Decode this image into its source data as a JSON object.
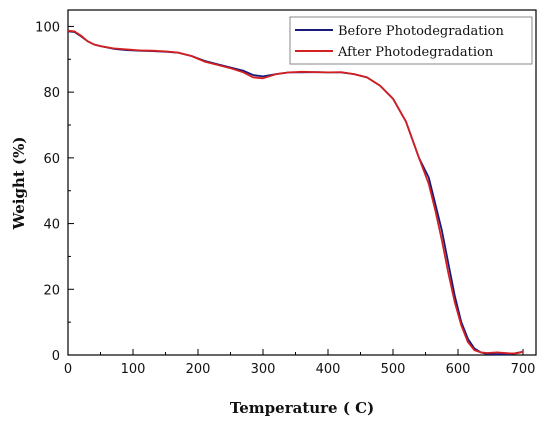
{
  "chart_data": {
    "type": "line",
    "xlabel": "Temperature ( C)",
    "ylabel": "Weight (%)",
    "xlim": [
      0,
      720
    ],
    "ylim": [
      0,
      105
    ],
    "xticks": [
      0,
      100,
      200,
      300,
      400,
      500,
      600,
      700
    ],
    "yticks": [
      0,
      20,
      40,
      60,
      80,
      100
    ],
    "grid": false,
    "legend_position": "top-right",
    "series": [
      {
        "name": "Before Photodegradation",
        "color": "#1a1a7a",
        "x": [
          0,
          10,
          20,
          30,
          40,
          50,
          70,
          90,
          110,
          130,
          150,
          170,
          190,
          210,
          230,
          250,
          270,
          285,
          300,
          320,
          340,
          360,
          380,
          400,
          420,
          440,
          460,
          480,
          500,
          520,
          540,
          555,
          565,
          575,
          585,
          595,
          605,
          615,
          625,
          635,
          645,
          660,
          680,
          700
        ],
        "y": [
          98.5,
          98.3,
          97,
          95.5,
          94.5,
          94,
          93.2,
          92.8,
          92.6,
          92.5,
          92.3,
          92,
          91,
          89.5,
          88.5,
          87.5,
          86.5,
          85.2,
          84.8,
          85.5,
          86,
          86,
          86.1,
          86,
          86,
          85.5,
          84.5,
          82,
          78,
          71,
          60,
          54,
          46,
          38,
          28,
          18,
          10,
          5,
          2,
          0.8,
          0.3,
          0.2,
          0.2,
          1
        ]
      },
      {
        "name": "After Photodegradation",
        "color": "#d42020",
        "x": [
          0,
          10,
          20,
          30,
          40,
          50,
          70,
          90,
          110,
          130,
          150,
          170,
          190,
          210,
          230,
          250,
          270,
          285,
          300,
          320,
          340,
          360,
          380,
          400,
          420,
          440,
          460,
          480,
          500,
          520,
          540,
          555,
          565,
          575,
          585,
          595,
          605,
          615,
          625,
          635,
          645,
          660,
          680,
          690,
          700
        ],
        "y": [
          98.7,
          98.5,
          97.2,
          95.5,
          94.5,
          94,
          93.3,
          93,
          92.7,
          92.6,
          92.4,
          92,
          91,
          89.3,
          88.3,
          87.3,
          86,
          84.5,
          84.2,
          85.5,
          86,
          86.2,
          86.1,
          86,
          86.1,
          85.5,
          84.5,
          82,
          78,
          71,
          60,
          52,
          44,
          35,
          25,
          16,
          9,
          4,
          1.5,
          0.8,
          0.6,
          0.8,
          0.5,
          0.5,
          1
        ]
      }
    ]
  }
}
